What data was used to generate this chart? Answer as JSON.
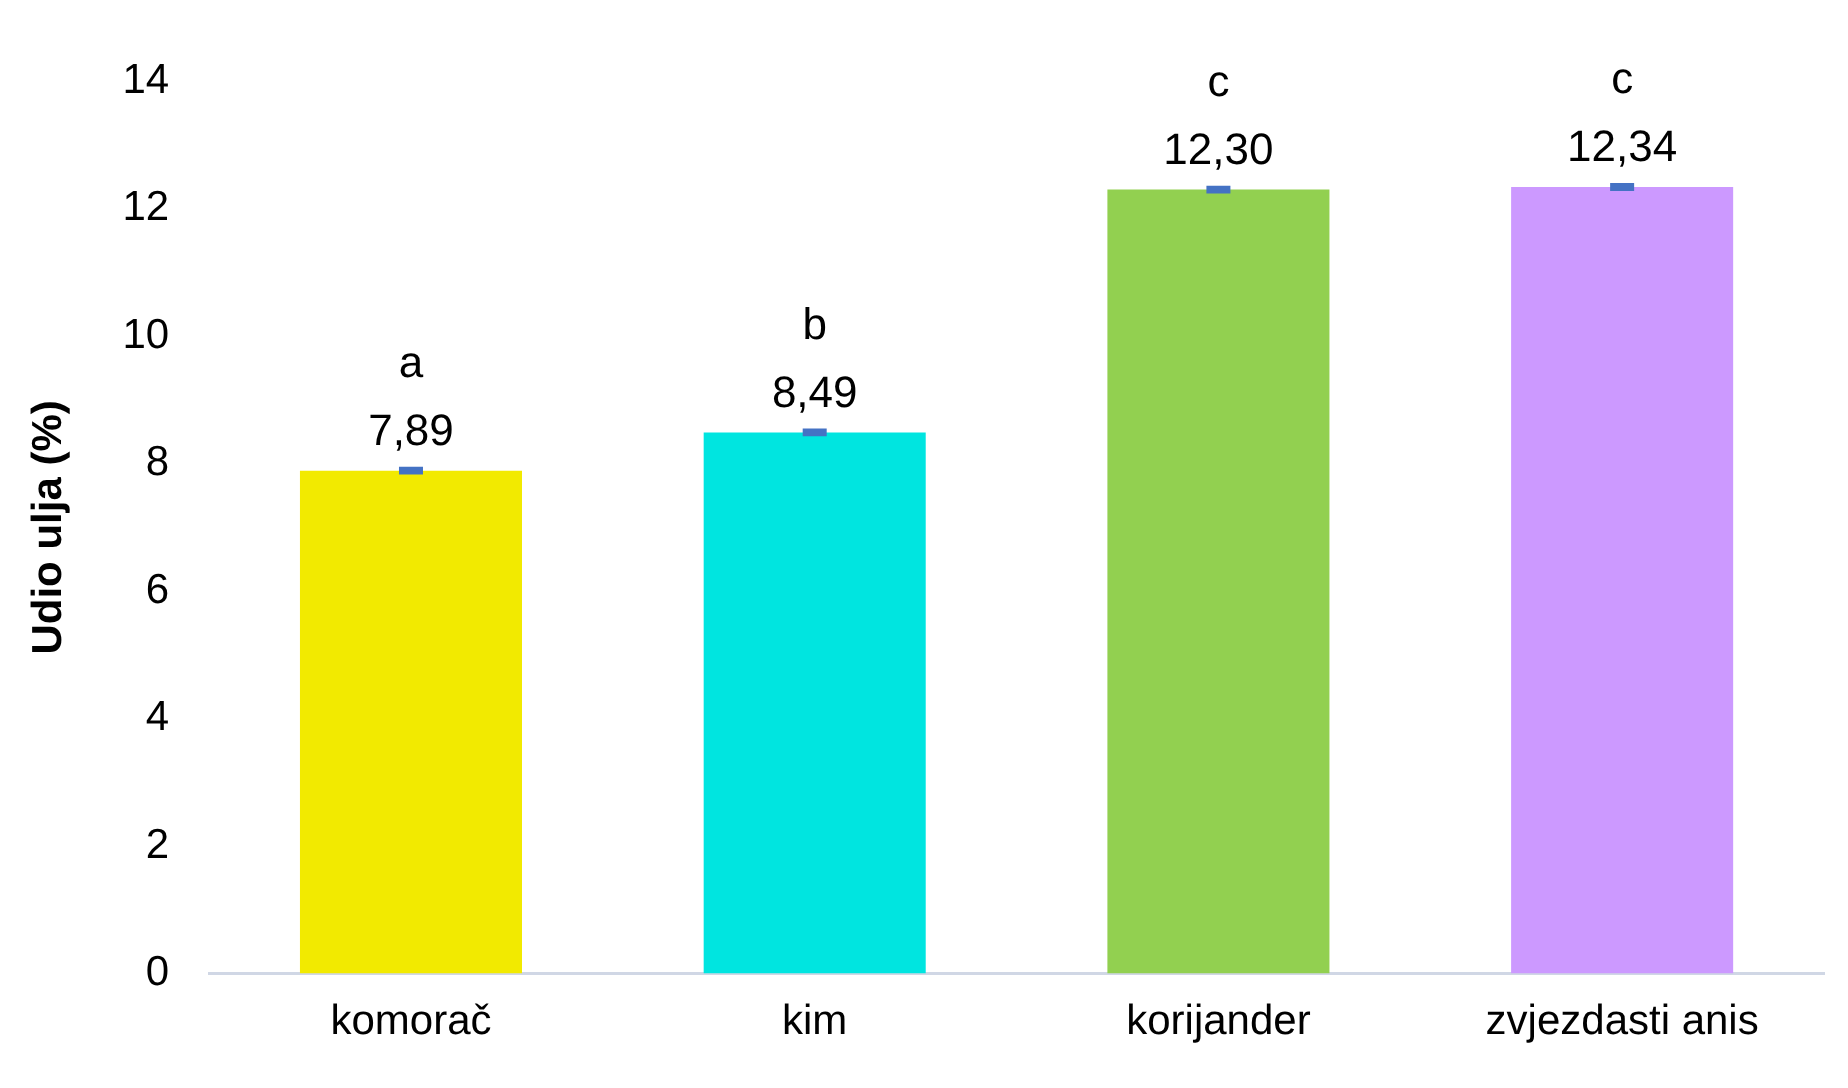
{
  "chart_data": {
    "type": "bar",
    "ylabel": "Udio ulja (%)",
    "categories": [
      "komorač",
      "kim",
      "korijander",
      "zvjezdasti anis"
    ],
    "values": [
      7.89,
      8.49,
      12.3,
      12.34
    ],
    "colors": [
      "#f2ea00",
      "#00e5e0",
      "#92d050",
      "#cc99ff"
    ],
    "errors": [
      0.03,
      0.03,
      0.03,
      0.03
    ],
    "value_labels": [
      "7,89",
      "8,49",
      "12,30",
      "12,34"
    ],
    "annotations": [
      "a",
      "b",
      "c",
      "c"
    ],
    "ylim": [
      0,
      14
    ],
    "yticks": [
      0,
      2,
      4,
      6,
      8,
      10,
      12,
      14
    ],
    "grid": false,
    "legend": false
  }
}
